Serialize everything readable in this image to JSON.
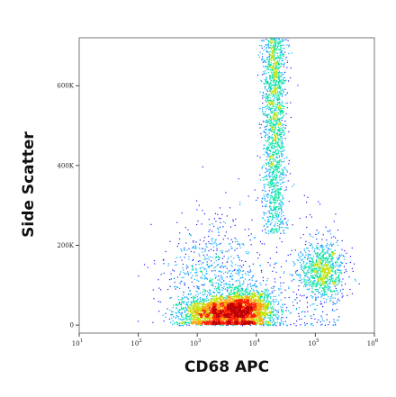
{
  "chart_data": {
    "type": "scatter",
    "title": "",
    "xlabel": "CD68 APC",
    "ylabel": "Side Scatter",
    "x_scale": "log",
    "xlim": [
      10,
      1000000
    ],
    "ylim": [
      -20000,
      720000
    ],
    "grid": false,
    "legend": "none",
    "x_ticks": [
      {
        "value": 10,
        "base": "10",
        "exp": "1"
      },
      {
        "value": 100,
        "base": "10",
        "exp": "2"
      },
      {
        "value": 1000,
        "base": "10",
        "exp": "3"
      },
      {
        "value": 10000,
        "base": "10",
        "exp": "4"
      },
      {
        "value": 100000,
        "base": "10",
        "exp": "5"
      },
      {
        "value": 1000000,
        "base": "10",
        "exp": "6"
      }
    ],
    "y_ticks": [
      {
        "value": 0,
        "label": "0"
      },
      {
        "value": 200000,
        "label": "200K"
      },
      {
        "value": 400000,
        "label": "400K"
      },
      {
        "value": 600000,
        "label": "600K"
      }
    ],
    "populations": [
      {
        "x_center": 20000,
        "x_spread_decades": 0.1,
        "y_range": [
          230000,
          720000
        ],
        "density": "high"
      },
      {
        "x_center": 6000,
        "x_spread_decades": 0.25,
        "y_center": 40000,
        "y_spread": 25000,
        "density": "highest"
      },
      {
        "x_center": 2000,
        "x_spread_decades": 0.3,
        "y_center": 30000,
        "y_spread": 20000,
        "density": "high"
      },
      {
        "x_center": 130000,
        "x_spread_decades": 0.2,
        "y_center": 140000,
        "y_spread": 35000,
        "density": "medium"
      },
      {
        "x_center": 2000,
        "x_spread_decades": 0.4,
        "y_center": 120000,
        "y_spread": 70000,
        "density": "low"
      }
    ],
    "colormap": [
      "#1a1aff",
      "#00aaff",
      "#00e0a0",
      "#c0e000",
      "#ffa000",
      "#ff2000",
      "#c00000"
    ]
  }
}
